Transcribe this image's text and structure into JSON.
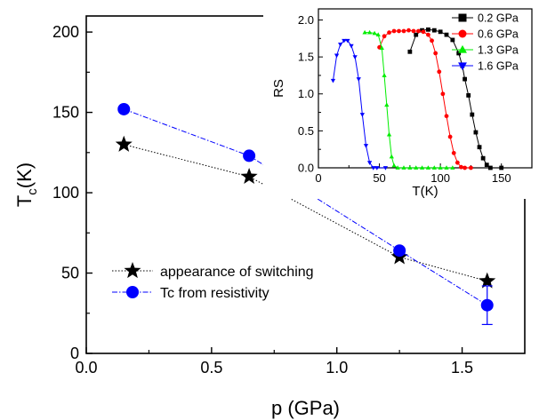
{
  "chart_data": [
    {
      "type": "scatter",
      "xlabel": "p (GPa)",
      "ylabel_main": "T",
      "ylabel_sub": "c",
      "ylabel_unit": "(K)",
      "xlim": [
        0.0,
        1.75
      ],
      "ylim": [
        0,
        210
      ],
      "xticks": [
        0.0,
        0.5,
        1.0,
        1.5
      ],
      "xtick_labels": [
        "0.0",
        "0.5",
        "1.0",
        "1.5"
      ],
      "yticks": [
        0,
        50,
        100,
        150,
        200
      ],
      "ytick_labels": [
        "0",
        "50",
        "100",
        "150",
        "200"
      ],
      "legend_position": "lower-left",
      "series": [
        {
          "name": "appearance of switching",
          "marker": "star",
          "line": "dotted",
          "color": "#000000",
          "x": [
            0.15,
            0.65,
            1.25,
            1.6
          ],
          "y": [
            130,
            110,
            60,
            45
          ]
        },
        {
          "name": "Tc from resistivity",
          "marker": "circle",
          "line": "dash-dot",
          "color": "#0000ff",
          "x": [
            0.15,
            0.65,
            1.25,
            1.6
          ],
          "y": [
            152,
            123,
            64,
            30
          ],
          "yerr": [
            0,
            0,
            0,
            12
          ]
        }
      ]
    },
    {
      "type": "line",
      "xlabel": "T(K)",
      "ylabel": "RS",
      "xlim": [
        0,
        175
      ],
      "ylim": [
        0,
        2.15
      ],
      "xticks": [
        0,
        50,
        100,
        150
      ],
      "xtick_labels": [
        "0",
        "50",
        "100",
        "150"
      ],
      "yticks": [
        0.0,
        0.5,
        1.0,
        1.5,
        2.0
      ],
      "ytick_labels": [
        "0.0",
        "0.5",
        "1.0",
        "1.5",
        "2.0"
      ],
      "legend_position": "top-right",
      "series": [
        {
          "name": "0.2 GPa",
          "marker": "square",
          "color": "#000000",
          "x": [
            75,
            80,
            85,
            90,
            95,
            100,
            105,
            110,
            115,
            118,
            120,
            123,
            126,
            129,
            132,
            135,
            138,
            141,
            150
          ],
          "y": [
            1.57,
            1.8,
            1.86,
            1.87,
            1.86,
            1.84,
            1.8,
            1.73,
            1.55,
            1.38,
            1.2,
            0.98,
            0.72,
            0.48,
            0.28,
            0.13,
            0.04,
            0.0,
            0.0
          ]
        },
        {
          "name": "0.6 GPa",
          "marker": "circle",
          "color": "#ff0000",
          "x": [
            50,
            54,
            58,
            62,
            66,
            70,
            74,
            78,
            82,
            86,
            90,
            93,
            96,
            99,
            102,
            105,
            108,
            111,
            114,
            117,
            120,
            125
          ],
          "y": [
            1.63,
            1.78,
            1.83,
            1.85,
            1.85,
            1.85,
            1.86,
            1.85,
            1.85,
            1.84,
            1.8,
            1.72,
            1.55,
            1.3,
            1.0,
            0.7,
            0.42,
            0.2,
            0.07,
            0.01,
            0.0,
            0.0
          ]
        },
        {
          "name": "1.3 GPa",
          "marker": "triangle-up",
          "color": "#00ee00",
          "x": [
            38,
            42,
            46,
            49,
            52,
            54,
            56,
            58,
            60,
            62,
            65,
            70,
            75,
            80,
            85,
            90,
            95,
            100,
            105,
            110
          ],
          "y": [
            1.83,
            1.83,
            1.82,
            1.8,
            1.62,
            1.25,
            0.85,
            0.45,
            0.15,
            0.03,
            0.0,
            0.0,
            0.0,
            0.0,
            0.0,
            0.0,
            0.0,
            0.0,
            0.0,
            0.0
          ]
        },
        {
          "name": "1.6 GPa",
          "marker": "triangle-down",
          "color": "#0000ff",
          "x": [
            12,
            15,
            18,
            21,
            24,
            27,
            30,
            33,
            36,
            39,
            42,
            45,
            48,
            55
          ],
          "y": [
            1.18,
            1.52,
            1.67,
            1.72,
            1.72,
            1.65,
            1.5,
            1.2,
            0.72,
            0.3,
            0.07,
            0.0,
            0.0,
            0.0
          ]
        }
      ]
    }
  ]
}
